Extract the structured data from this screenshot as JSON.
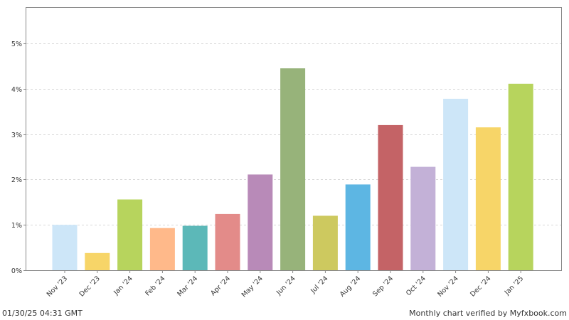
{
  "chart_data": {
    "type": "bar",
    "categories": [
      "Nov '23",
      "Dec '23",
      "Jan '24",
      "Feb '24",
      "Mar '24",
      "Apr '24",
      "May '24",
      "Jun '24",
      "Jul '24",
      "Aug '24",
      "Sep '24",
      "Oct '24",
      "Nov '24",
      "Dec '24",
      "Jan '25"
    ],
    "values": [
      1.0,
      0.38,
      1.56,
      0.93,
      0.98,
      1.24,
      2.11,
      4.45,
      1.2,
      1.89,
      3.2,
      2.28,
      3.78,
      3.15,
      4.11
    ],
    "colors": [
      "#cde6f8",
      "#f7d568",
      "#b7d45d",
      "#ffb98a",
      "#5cb8b8",
      "#e38b89",
      "#b88ab8",
      "#97b37a",
      "#cdc95f",
      "#5db6e3",
      "#c46366",
      "#c3b1d7",
      "#cde6f8",
      "#f7d568",
      "#b7d45d"
    ],
    "yticks": [
      "0%",
      "1%",
      "2%",
      "3%",
      "4%",
      "5%"
    ],
    "ylim": [
      0,
      5.8
    ],
    "grid": true,
    "title": "",
    "xlabel": "",
    "ylabel": ""
  },
  "footer": {
    "timestamp": "01/30/25 04:31 GMT",
    "verified": "Monthly chart verified by Myfxbook.com"
  }
}
